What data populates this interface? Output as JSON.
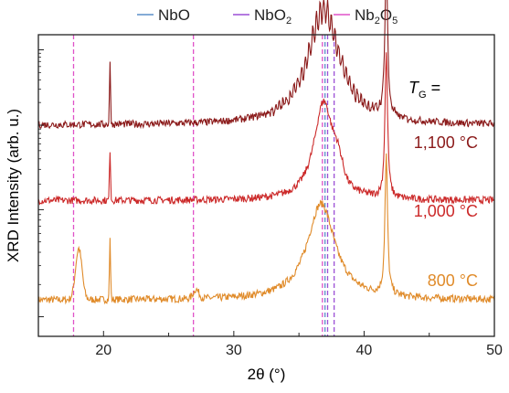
{
  "chart_data": {
    "type": "line",
    "title": "",
    "xlabel": "2θ (°)",
    "ylabel": "XRD Intensity (arb. u.)",
    "ylabel_scale": "log",
    "xlim": [
      15,
      50
    ],
    "xticks": [
      20,
      30,
      40,
      50
    ],
    "annotation": {
      "symbol": "T",
      "subscript": "G",
      "suffix": " ="
    },
    "legend": {
      "placement": "top",
      "entries": [
        {
          "base": "NbO",
          "sub": "",
          "tail": "",
          "color": "#5b8fc9",
          "dash": "solid"
        },
        {
          "base": "NbO",
          "sub": "2",
          "tail": "",
          "color": "#9b4fd6",
          "dash": "solid"
        },
        {
          "base": "Nb",
          "sub": "2",
          "tail": "O",
          "sub2": "5",
          "color": "#e052c8",
          "dash": "solid"
        }
      ]
    },
    "reference_lines": [
      {
        "phase": "Nb2O5",
        "x": 17.7,
        "color": "#e052c8"
      },
      {
        "phase": "Nb2O5",
        "x": 26.9,
        "color": "#e052c8"
      },
      {
        "phase": "Nb2O5",
        "x": 36.8,
        "color": "#e052c8"
      },
      {
        "phase": "NbO",
        "x": 37.0,
        "color": "#5b8fc9"
      },
      {
        "phase": "NbO2",
        "x": 37.2,
        "color": "#9b4fd6"
      },
      {
        "phase": "NbO2",
        "x": 37.7,
        "color": "#9b4fd6"
      }
    ],
    "series": [
      {
        "name": "800 °C",
        "color": "#e08b2a",
        "baseline": 0.12,
        "noise": 0.012,
        "slope": 0.0,
        "peaks": [
          {
            "x": 18.1,
            "h": 0.17,
            "w": 0.35,
            "type": "gauss"
          },
          {
            "x": 20.5,
            "h": 0.2,
            "w": 0.06,
            "type": "gauss"
          },
          {
            "x": 27.1,
            "h": 0.03,
            "w": 0.3,
            "type": "gauss"
          },
          {
            "x": 36.7,
            "h": 0.32,
            "w": 1.3,
            "type": "lorentz"
          },
          {
            "x": 41.7,
            "h": 0.46,
            "w": 0.12,
            "type": "lorentz"
          }
        ]
      },
      {
        "name": "1,000 °C",
        "color": "#cc2a2a",
        "baseline": 0.45,
        "noise": 0.012,
        "slope": 0.0,
        "peaks": [
          {
            "x": 20.5,
            "h": 0.17,
            "w": 0.06,
            "type": "gauss"
          },
          {
            "x": 36.9,
            "h": 0.33,
            "w": 0.9,
            "type": "lorentz"
          },
          {
            "x": 38.0,
            "h": 0.06,
            "w": 0.5,
            "type": "gauss"
          },
          {
            "x": 41.7,
            "h": 0.48,
            "w": 0.12,
            "type": "lorentz"
          }
        ]
      },
      {
        "name": "1,100 °C",
        "color": "#8b1a1a",
        "baseline": 0.7,
        "noise": 0.012,
        "slope": 0.0,
        "fringes": {
          "from": 32.0,
          "to": 44.0,
          "amp": 0.04
        },
        "peaks": [
          {
            "x": 20.5,
            "h": 0.2,
            "w": 0.06,
            "type": "gauss"
          },
          {
            "x": 36.9,
            "h": 0.38,
            "w": 1.5,
            "type": "lorentz"
          },
          {
            "x": 41.7,
            "h": 0.52,
            "w": 0.12,
            "type": "lorentz"
          }
        ]
      }
    ],
    "grid": false
  }
}
